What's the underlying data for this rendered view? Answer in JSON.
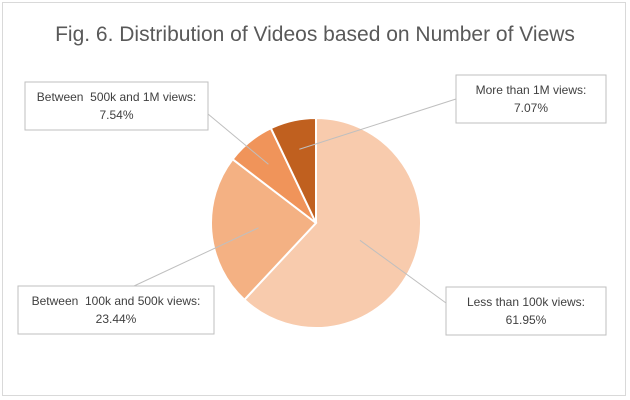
{
  "chart_data": {
    "type": "pie",
    "title": "Fig. 6. Distribution of Videos based on Number of Views",
    "slices": [
      {
        "label": "Less than 100k views:",
        "value_label": "61.95%",
        "value": 61.95,
        "color": "#f8cbad"
      },
      {
        "label": "Between  100k and 500k views:",
        "value_label": "23.44%",
        "value": 23.44,
        "color": "#f4b183"
      },
      {
        "label": "Between  500k and 1M views:",
        "value_label": "7.54%",
        "value": 7.54,
        "color": "#f0945a"
      },
      {
        "label": "More than 1M views:",
        "value_label": "7.07%",
        "value": 7.07,
        "color": "#c0601f"
      }
    ],
    "legend": "none",
    "data_labels": "callouts"
  }
}
